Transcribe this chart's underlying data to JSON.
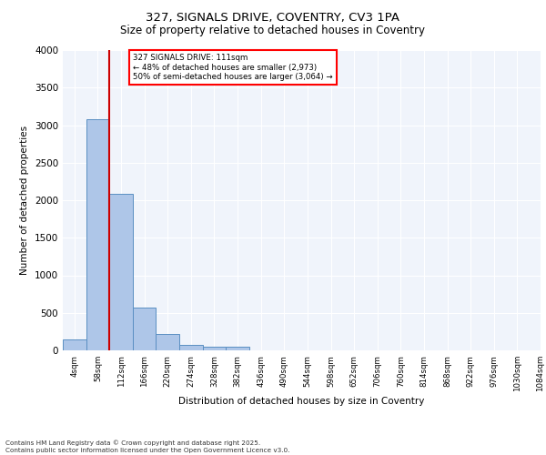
{
  "title1": "327, SIGNALS DRIVE, COVENTRY, CV3 1PA",
  "title2": "Size of property relative to detached houses in Coventry",
  "xlabel": "Distribution of detached houses by size in Coventry",
  "ylabel": "Number of detached properties",
  "bin_labels": [
    "4sqm",
    "58sqm",
    "112sqm",
    "166sqm",
    "220sqm",
    "274sqm",
    "328sqm",
    "382sqm",
    "436sqm",
    "490sqm",
    "544sqm",
    "598sqm",
    "652sqm",
    "706sqm",
    "760sqm",
    "814sqm",
    "868sqm",
    "922sqm",
    "976sqm",
    "1030sqm",
    "1084sqm"
  ],
  "bar_values": [
    140,
    3080,
    2090,
    575,
    215,
    70,
    50,
    50,
    0,
    0,
    0,
    0,
    0,
    0,
    0,
    0,
    0,
    0,
    0,
    0
  ],
  "bar_color": "#aec6e8",
  "bar_edge_color": "#5a8fc2",
  "red_line_x": 2,
  "annotation_lines": [
    "327 SIGNALS DRIVE: 111sqm",
    "← 48% of detached houses are smaller (2,973)",
    "50% of semi-detached houses are larger (3,064) →"
  ],
  "annotation_box_color": "white",
  "annotation_box_edge_color": "red",
  "red_line_color": "#cc0000",
  "footer1": "Contains HM Land Registry data © Crown copyright and database right 2025.",
  "footer2": "Contains public sector information licensed under the Open Government Licence v3.0.",
  "ylim": [
    0,
    4000
  ],
  "yticks": [
    0,
    500,
    1000,
    1500,
    2000,
    2500,
    3000,
    3500,
    4000
  ],
  "bg_color": "#f0f4fb",
  "plot_bg_color": "#f0f4fb"
}
